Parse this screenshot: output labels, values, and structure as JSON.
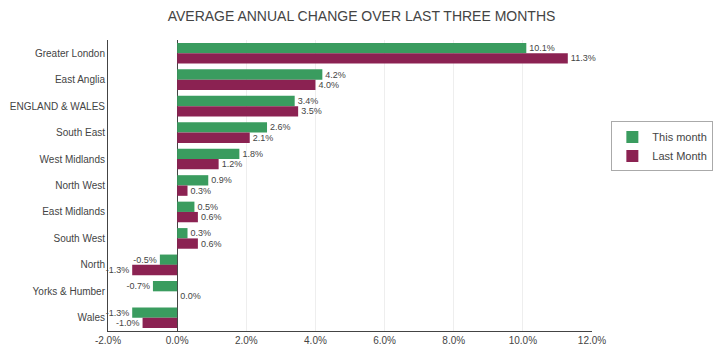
{
  "chart_data": {
    "type": "bar",
    "orientation": "horizontal",
    "title": "AVERAGE ANNUAL CHANGE OVER LAST THREE MONTHS",
    "categories": [
      "Greater London",
      "East Anglia",
      "ENGLAND & WALES",
      "South East",
      "West Midlands",
      "North West",
      "East Midlands",
      "South West",
      "North",
      "Yorks & Humber",
      "Wales"
    ],
    "series": [
      {
        "name": "This month",
        "color": "#3a9c5f",
        "values": [
          10.1,
          4.2,
          3.4,
          2.6,
          1.8,
          0.9,
          0.5,
          0.3,
          -0.5,
          -0.7,
          -1.3
        ],
        "value_labels": [
          "10.1%",
          "4.2%",
          "3.4%",
          "2.6%",
          "1.8%",
          "0.9%",
          "0.5%",
          "0.3%",
          "-0.5%",
          "-0.7%",
          "-1.3%"
        ]
      },
      {
        "name": "Last Month",
        "color": "#8b2252",
        "values": [
          11.3,
          4.0,
          3.5,
          2.1,
          1.2,
          0.3,
          0.6,
          0.6,
          -1.3,
          0.0,
          -1.0
        ],
        "value_labels": [
          "11.3%",
          "4.0%",
          "3.5%",
          "2.1%",
          "1.2%",
          "0.3%",
          "0.6%",
          "0.6%",
          "-1.3%",
          "0.0%",
          "-1.0%"
        ]
      }
    ],
    "xlim": [
      -2.0,
      12.0
    ],
    "xticks": [
      {
        "value": -2.0,
        "label": "-2.0%"
      },
      {
        "value": 0.0,
        "label": "0.0%"
      },
      {
        "value": 2.0,
        "label": "2.0%"
      },
      {
        "value": 4.0,
        "label": "4.0%"
      },
      {
        "value": 6.0,
        "label": "6.0%"
      },
      {
        "value": 8.0,
        "label": "8.0%"
      },
      {
        "value": 10.0,
        "label": "10.0%"
      },
      {
        "value": 12.0,
        "label": "12.0%"
      }
    ],
    "grid": true,
    "legend": "right",
    "data_labels": true
  }
}
